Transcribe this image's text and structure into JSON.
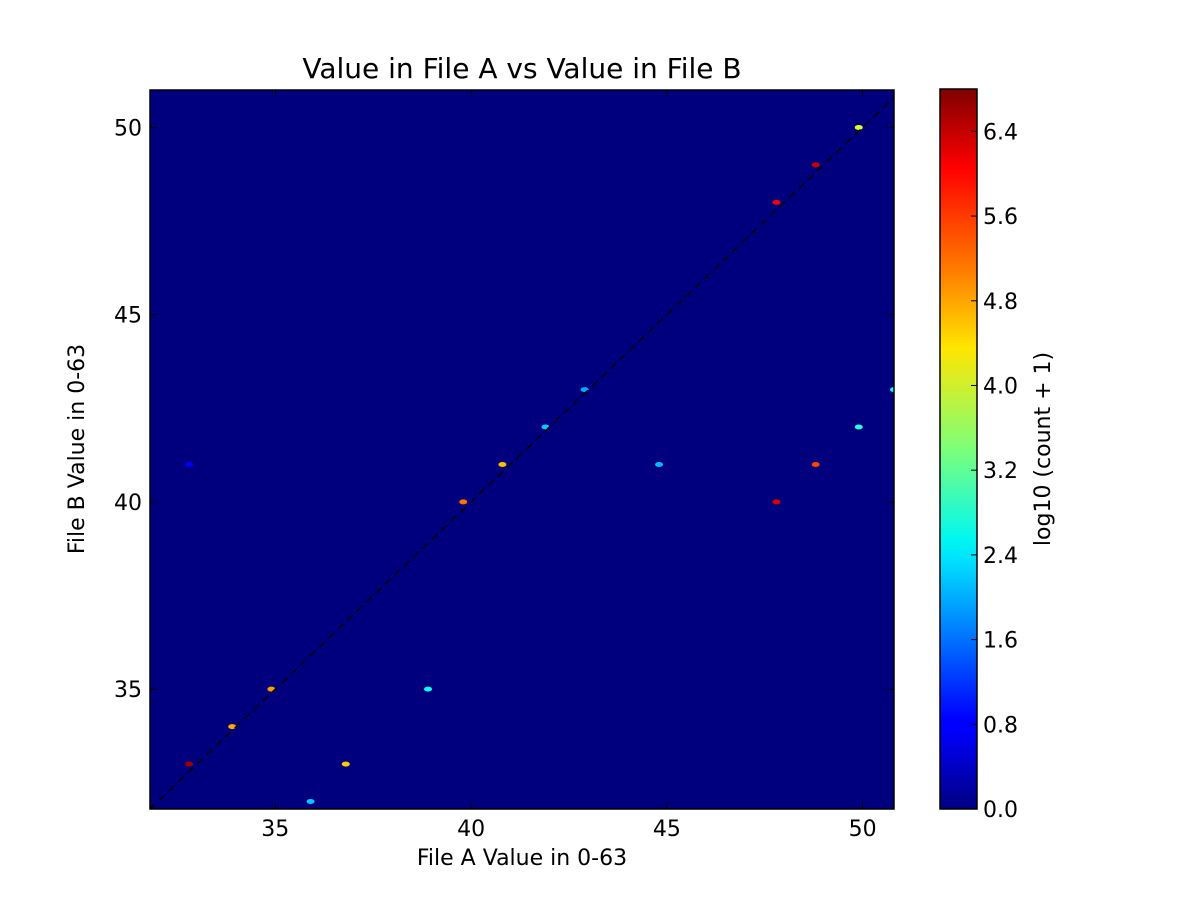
{
  "chart_data": {
    "type": "heatmap",
    "title": "Value in File A vs Value in File B",
    "xlabel": "File A Value in 0-63",
    "ylabel": "File B Value in 0-63",
    "xlim": [
      31.8,
      50.8
    ],
    "ylim": [
      31.8,
      51.0
    ],
    "xticks": [
      35,
      40,
      45,
      50
    ],
    "yticks": [
      35,
      40,
      45,
      50
    ],
    "colormap": "jet",
    "background_color": "#00007f",
    "diagonal_line": {
      "style": "dashed",
      "color": "#000000",
      "from": [
        31.8,
        31.8
      ],
      "to": [
        51.0,
        51.0
      ]
    },
    "colorbar": {
      "label": "log10 (count + 1)",
      "min": 0.0,
      "max": 6.8,
      "ticks": [
        "0.0",
        "0.8",
        "1.6",
        "2.4",
        "3.2",
        "4.0",
        "4.8",
        "5.6",
        "6.4"
      ]
    },
    "points": [
      {
        "x": 32.8,
        "y": 33,
        "value": 6.6
      },
      {
        "x": 32.8,
        "y": 41,
        "value": 0.8
      },
      {
        "x": 33.9,
        "y": 34,
        "value": 4.8
      },
      {
        "x": 34.9,
        "y": 35,
        "value": 4.9
      },
      {
        "x": 35.9,
        "y": 32,
        "value": 2.2
      },
      {
        "x": 36.8,
        "y": 33,
        "value": 4.6
      },
      {
        "x": 38.9,
        "y": 35,
        "value": 2.6
      },
      {
        "x": 39.8,
        "y": 40,
        "value": 5.2
      },
      {
        "x": 40.8,
        "y": 41,
        "value": 4.7
      },
      {
        "x": 41.9,
        "y": 42,
        "value": 2.2
      },
      {
        "x": 42.9,
        "y": 43,
        "value": 2.0
      },
      {
        "x": 44.8,
        "y": 41,
        "value": 2.1
      },
      {
        "x": 47.8,
        "y": 40,
        "value": 6.2
      },
      {
        "x": 47.8,
        "y": 48,
        "value": 6.0
      },
      {
        "x": 48.8,
        "y": 49,
        "value": 6.3
      },
      {
        "x": 48.8,
        "y": 41,
        "value": 5.5
      },
      {
        "x": 49.9,
        "y": 50,
        "value": 4.0
      },
      {
        "x": 49.9,
        "y": 42,
        "value": 2.8
      },
      {
        "x": 50.8,
        "y": 43,
        "value": 2.6
      }
    ]
  }
}
